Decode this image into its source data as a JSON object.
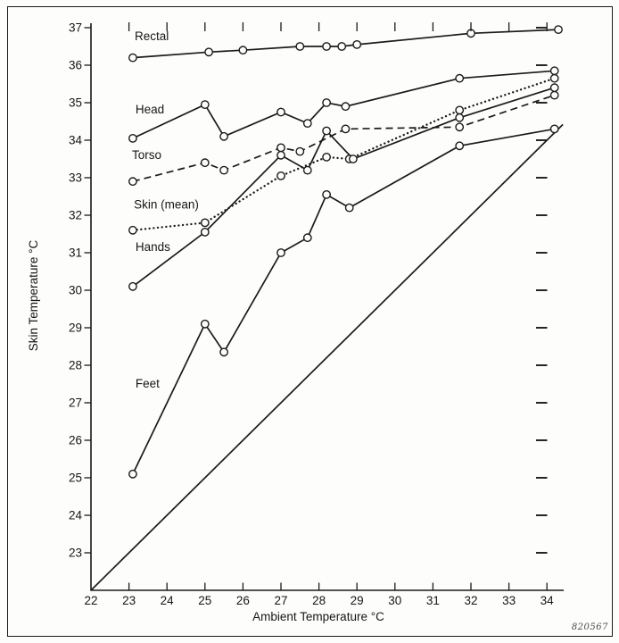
{
  "figure": {
    "kind": "physiology line chart",
    "ink_color": "#1a1a1a",
    "background_color": "#fdfdfb"
  },
  "chart_data": {
    "type": "line",
    "title": "",
    "xlabel": "Ambient Temperature °C",
    "ylabel": "Skin Temperature °C",
    "xlim": [
      22,
      34.45
    ],
    "ylim": [
      22,
      37.1
    ],
    "x_ticks": [
      22,
      23,
      24,
      25,
      26,
      27,
      28,
      29,
      30,
      31,
      32,
      33,
      34
    ],
    "y_ticks": [
      23,
      24,
      25,
      26,
      27,
      28,
      29,
      30,
      31,
      32,
      33,
      34,
      35,
      36,
      37
    ],
    "x_ticks_top": [
      23,
      24,
      25,
      26,
      27,
      28,
      29,
      30,
      31,
      32,
      33,
      34
    ],
    "y_ticks_right": [
      23,
      24,
      25,
      26,
      27,
      28,
      29,
      30,
      31,
      32,
      33,
      34,
      35,
      36,
      37
    ],
    "grid": false,
    "legend_position": "inline-labels",
    "series": [
      {
        "name": "Rectal",
        "label": "Rectal",
        "label_pos": [
          23.15,
          36.67
        ],
        "line_style": "solid",
        "marker": "circle",
        "points": [
          [
            23.1,
            36.2
          ],
          [
            25.1,
            36.35
          ],
          [
            26.0,
            36.4
          ],
          [
            27.5,
            36.5
          ],
          [
            28.2,
            36.5
          ],
          [
            28.6,
            36.5
          ],
          [
            29.0,
            36.55
          ],
          [
            32.0,
            36.85
          ],
          [
            34.3,
            36.95
          ]
        ]
      },
      {
        "name": "Head",
        "label": "Head",
        "label_pos": [
          23.17,
          34.72
        ],
        "line_style": "solid",
        "marker": "circle",
        "points": [
          [
            23.1,
            34.05
          ],
          [
            25.0,
            34.95
          ],
          [
            25.5,
            34.1
          ],
          [
            27.0,
            34.75
          ],
          [
            27.7,
            34.45
          ],
          [
            28.2,
            35.0
          ],
          [
            28.7,
            34.9
          ],
          [
            31.7,
            35.65
          ],
          [
            34.2,
            35.85
          ]
        ]
      },
      {
        "name": "Torso",
        "label": "Torso",
        "label_pos": [
          23.08,
          33.5
        ],
        "line_style": "dashed",
        "marker": "circle",
        "points": [
          [
            23.1,
            32.9
          ],
          [
            25.0,
            33.4
          ],
          [
            25.5,
            33.2
          ],
          [
            27.0,
            33.8
          ],
          [
            27.5,
            33.7
          ],
          [
            28.7,
            34.3
          ],
          [
            31.7,
            34.35
          ],
          [
            34.2,
            35.2
          ]
        ]
      },
      {
        "name": "Skin (mean)",
        "label": "Skin (mean)",
        "label_pos": [
          23.13,
          32.18
        ],
        "line_style": "dotted",
        "marker": "circle",
        "points": [
          [
            23.1,
            31.6
          ],
          [
            25.0,
            31.8
          ],
          [
            27.0,
            33.05
          ],
          [
            28.2,
            33.55
          ],
          [
            28.8,
            33.5
          ],
          [
            31.7,
            34.8
          ],
          [
            34.2,
            35.65
          ]
        ]
      },
      {
        "name": "Hands",
        "label": "Hands",
        "label_pos": [
          23.17,
          31.05
        ],
        "line_style": "solid",
        "marker": "circle",
        "points": [
          [
            23.1,
            30.1
          ],
          [
            25.0,
            31.55
          ],
          [
            27.0,
            33.6
          ],
          [
            27.7,
            33.2
          ],
          [
            28.2,
            34.25
          ],
          [
            28.9,
            33.5
          ],
          [
            31.7,
            34.6
          ],
          [
            34.2,
            35.4
          ]
        ]
      },
      {
        "name": "Feet",
        "label": "Feet",
        "label_pos": [
          23.17,
          27.4
        ],
        "line_style": "solid",
        "marker": "circle",
        "points": [
          [
            23.1,
            25.1
          ],
          [
            25.0,
            29.1
          ],
          [
            25.5,
            28.35
          ],
          [
            27.0,
            31.0
          ],
          [
            27.7,
            31.4
          ],
          [
            28.2,
            32.55
          ],
          [
            28.8,
            32.2
          ],
          [
            31.7,
            33.85
          ],
          [
            34.2,
            34.3
          ]
        ]
      },
      {
        "name": "ambient-equality-line",
        "label": "",
        "label_pos": null,
        "line_style": "solid",
        "marker": "none",
        "points": [
          [
            22,
            22
          ],
          [
            34.42,
            34.42
          ]
        ]
      }
    ],
    "figure_number": "820567"
  }
}
